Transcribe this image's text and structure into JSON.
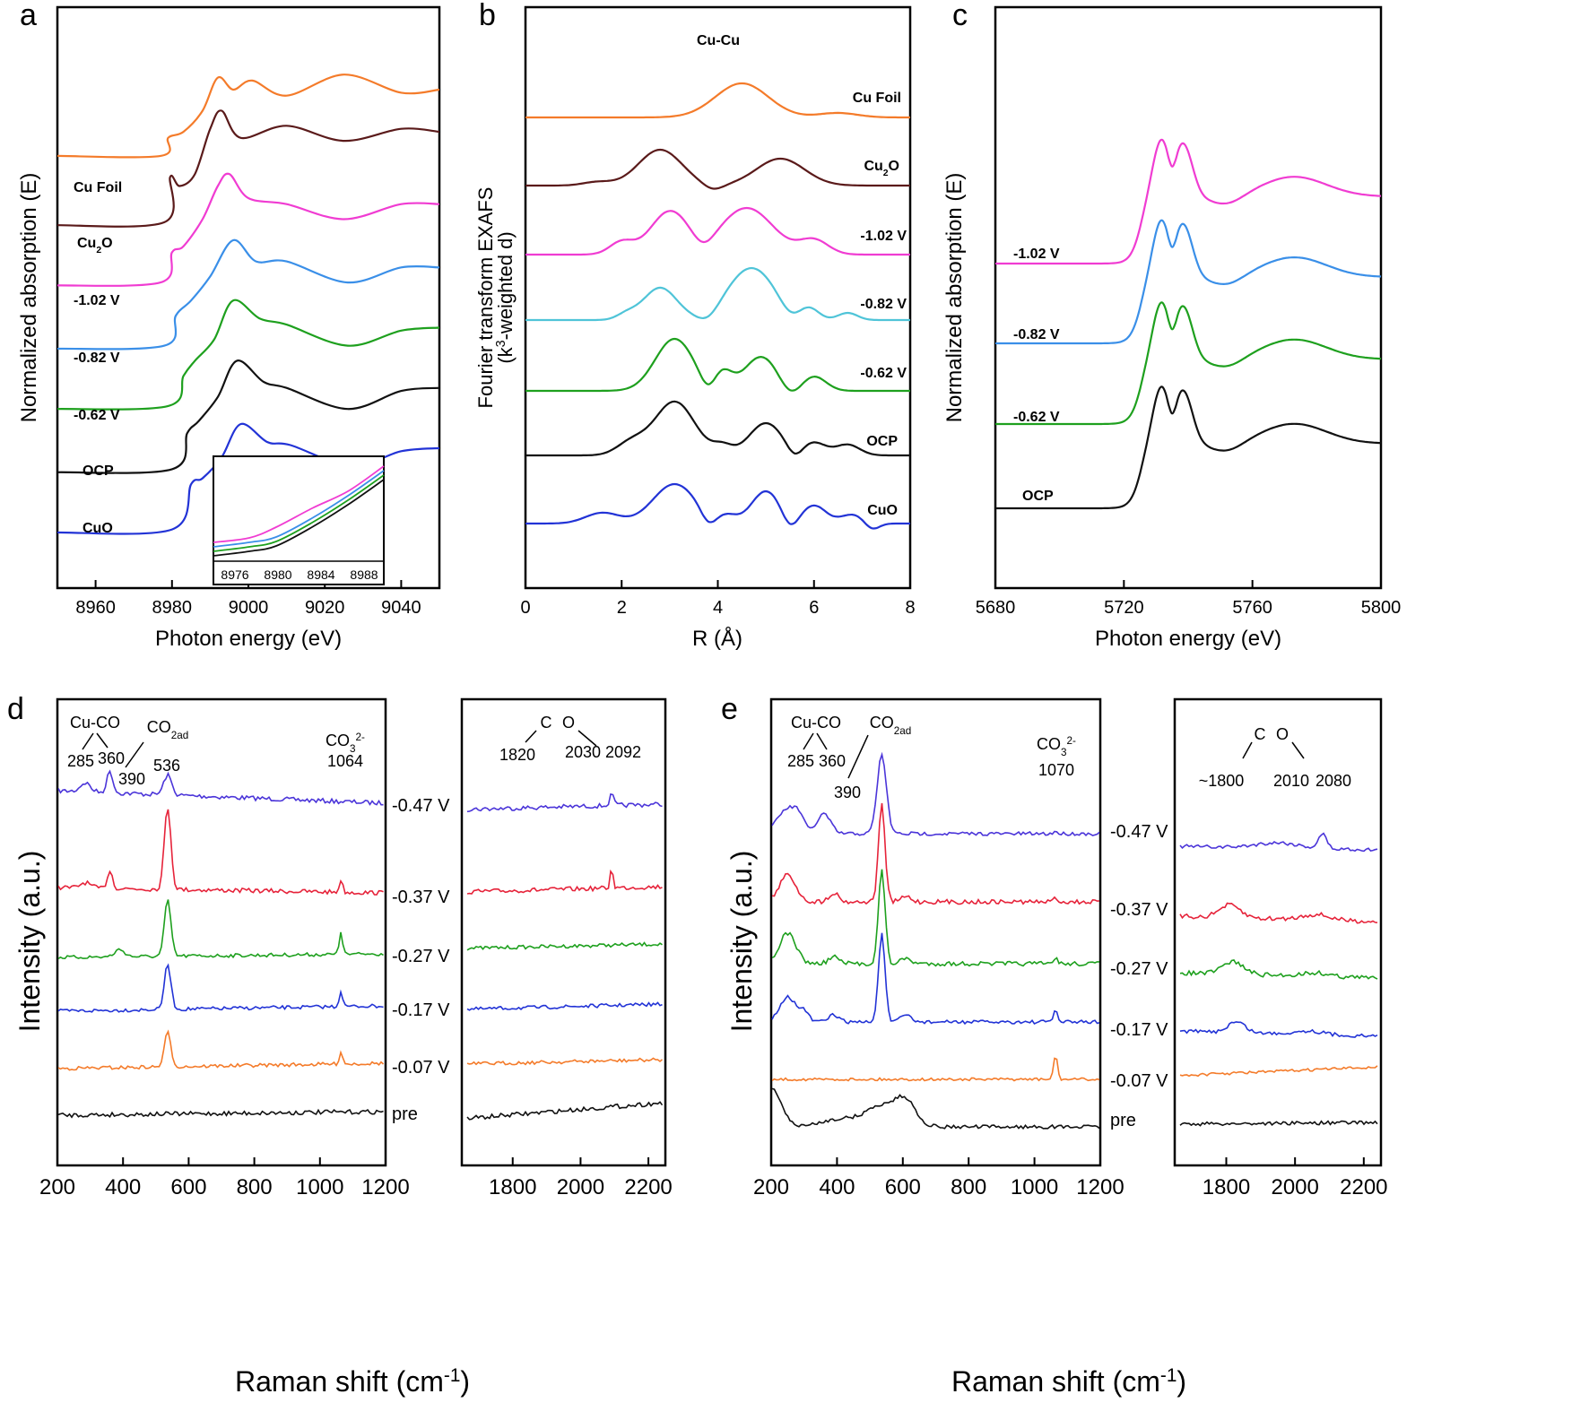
{
  "colors": {
    "orange": "#f47b2a",
    "brown": "#5a1a1a",
    "magenta": "#f03cd2",
    "lightblue": "#3a8fe8",
    "cyan": "#4fc4d8",
    "green": "#1ea01e",
    "black": "#111111",
    "blue": "#2233d6",
    "red": "#e6233a",
    "purple": "#4b35d9",
    "darkgreen": "#1a8a1a"
  },
  "chart_data": [
    {
      "panel": "a",
      "type": "line",
      "ylabel": "Normalized absorption (E)",
      "xlabel": "Photon energy (eV)",
      "xlim": [
        8950,
        9050
      ],
      "xticks": [
        "8960",
        "8980",
        "9000",
        "9020",
        "9040"
      ],
      "series": [
        {
          "name": "Cu Foil",
          "color": "orange",
          "x": [
            8950,
            8977,
            8979,
            8983,
            8988,
            8992,
            8996,
            9001,
            9010,
            9025,
            9040,
            9050
          ],
          "y": [
            0.78,
            0.78,
            0.84,
            0.86,
            0.93,
            1.04,
            1.0,
            1.03,
            0.98,
            1.05,
            0.99,
            1.0
          ]
        },
        {
          "name": "Cu₂O",
          "color": "brown",
          "x": [
            8950,
            8978,
            8979.5,
            8982,
            8986,
            8990,
            8993,
            8998,
            9010,
            9025,
            9040,
            9050
          ],
          "y": [
            0.55,
            0.56,
            0.71,
            0.68,
            0.72,
            0.87,
            0.93,
            0.84,
            0.88,
            0.83,
            0.87,
            0.86
          ]
        },
        {
          "name": "-1.02 V",
          "color": "magenta",
          "x": [
            8950,
            8977,
            8980,
            8983,
            8988,
            8992,
            8995,
            9000,
            9010,
            9025,
            9040,
            9050
          ],
          "y": [
            0.35,
            0.36,
            0.46,
            0.48,
            0.57,
            0.68,
            0.72,
            0.64,
            0.62,
            0.57,
            0.62,
            0.62
          ]
        },
        {
          "name": "-0.82 V",
          "color": "lightblue",
          "x": [
            8950,
            8978,
            8981,
            8985,
            8990,
            8996,
            9002,
            9010,
            9026,
            9040,
            9050
          ],
          "y": [
            0.14,
            0.15,
            0.25,
            0.3,
            0.38,
            0.5,
            0.43,
            0.43,
            0.36,
            0.41,
            0.41
          ]
        },
        {
          "name": "-0.62 V",
          "color": "green",
          "x": [
            8950,
            8979,
            8983,
            8986,
            8991,
            8996,
            9003,
            9010,
            9026,
            9040,
            9050
          ],
          "y": [
            -0.06,
            -0.05,
            0.05,
            0.1,
            0.17,
            0.3,
            0.24,
            0.22,
            0.15,
            0.2,
            0.21
          ]
        },
        {
          "name": "OCP",
          "color": "black",
          "x": [
            8950,
            8980,
            8984,
            8987,
            8992,
            8997,
            9004,
            9010,
            9026,
            9040,
            9050
          ],
          "y": [
            -0.27,
            -0.26,
            -0.14,
            -0.1,
            -0.02,
            0.1,
            0.03,
            0.01,
            -0.06,
            0.0,
            0.01
          ]
        },
        {
          "name": "CuO",
          "color": "blue",
          "x": [
            8950,
            8980,
            8985,
            8988,
            8993,
            8998,
            9005,
            9011,
            9027,
            9040,
            9050
          ],
          "y": [
            -0.47,
            -0.46,
            -0.31,
            -0.29,
            -0.22,
            -0.11,
            -0.17,
            -0.18,
            -0.25,
            -0.2,
            -0.19
          ]
        }
      ],
      "inset": {
        "xticks": [
          "8976",
          "8980",
          "8984",
          "8988"
        ]
      }
    },
    {
      "panel": "b",
      "type": "line",
      "ylabel_line1": "Fourier transform EXAFS",
      "ylabel_line2": "(k³-weighted d)",
      "xlabel": "R (Å)",
      "xlim": [
        0,
        8
      ],
      "xticks": [
        "0",
        "2",
        "4",
        "6",
        "8"
      ],
      "annotation": "Cu-Cu",
      "series": [
        {
          "name": "Cu Foil",
          "color": "orange"
        },
        {
          "name": "Cu₂O",
          "color": "brown"
        },
        {
          "name": "-1.02 V",
          "color": "magenta"
        },
        {
          "name": "-0.82 V",
          "color": "cyan"
        },
        {
          "name": "-0.62 V",
          "color": "green"
        },
        {
          "name": "OCP",
          "color": "black"
        },
        {
          "name": "CuO",
          "color": "blue"
        }
      ]
    },
    {
      "panel": "c",
      "type": "line",
      "ylabel": "Normalized absorption (E)",
      "xlabel": "Photon energy (eV)",
      "xlim": [
        5680,
        5800
      ],
      "xticks": [
        "5680",
        "5720",
        "5760",
        "5800"
      ],
      "series": [
        {
          "name": "-1.02 V",
          "color": "magenta"
        },
        {
          "name": "-0.82 V",
          "color": "lightblue"
        },
        {
          "name": "-0.62 V",
          "color": "green"
        },
        {
          "name": "OCP",
          "color": "black"
        }
      ]
    },
    {
      "panel": "d",
      "type": "line",
      "ylabel": "Intensity (a.u.)",
      "xlabel": "Raman shift (cm⁻¹)",
      "xlim_left": [
        200,
        1200
      ],
      "xticks_left": [
        "200",
        "400",
        "600",
        "800",
        "1000",
        "1200"
      ],
      "xlim_right": [
        1650,
        2250
      ],
      "xticks_right": [
        "1800",
        "2000",
        "2200"
      ],
      "annotations": [
        "Cu-CO",
        "285",
        "360",
        "390",
        "536",
        "1064",
        "1820",
        "2030",
        "2092"
      ],
      "co2_label": "CO2ad",
      "co3_label": "CO3 2-",
      "co_label_c": "C",
      "co_label_o": "O",
      "series": [
        {
          "name": "-0.47 V",
          "color": "purple"
        },
        {
          "name": "-0.37 V",
          "color": "red"
        },
        {
          "name": "-0.27 V",
          "color": "green"
        },
        {
          "name": "-0.17 V",
          "color": "blue"
        },
        {
          "name": "-0.07 V",
          "color": "orange"
        },
        {
          "name": "pre",
          "color": "black"
        }
      ]
    },
    {
      "panel": "e",
      "type": "line",
      "ylabel": "Intensity (a.u.)",
      "xlabel": "Raman shift (cm⁻¹)",
      "xlim_left": [
        200,
        1200
      ],
      "xticks_left": [
        "200",
        "400",
        "600",
        "800",
        "1000",
        "1200"
      ],
      "xlim_right": [
        1650,
        2250
      ],
      "xticks_right": [
        "1800",
        "2000",
        "2200"
      ],
      "annotations": [
        "Cu-CO",
        "285",
        "360",
        "390",
        "1070",
        "~1800",
        "2010",
        "2080"
      ],
      "co2_label": "CO2ad",
      "co3_label": "CO3 2-",
      "co_label_c": "C",
      "co_label_o": "O",
      "series": [
        {
          "name": "-0.47 V",
          "color": "purple"
        },
        {
          "name": "-0.37 V",
          "color": "red"
        },
        {
          "name": "-0.27 V",
          "color": "green"
        },
        {
          "name": "-0.17 V",
          "color": "blue"
        },
        {
          "name": "-0.07 V",
          "color": "orange"
        },
        {
          "name": "pre",
          "color": "black"
        }
      ]
    }
  ],
  "panel_letters": [
    "a",
    "b",
    "c",
    "d",
    "e"
  ]
}
